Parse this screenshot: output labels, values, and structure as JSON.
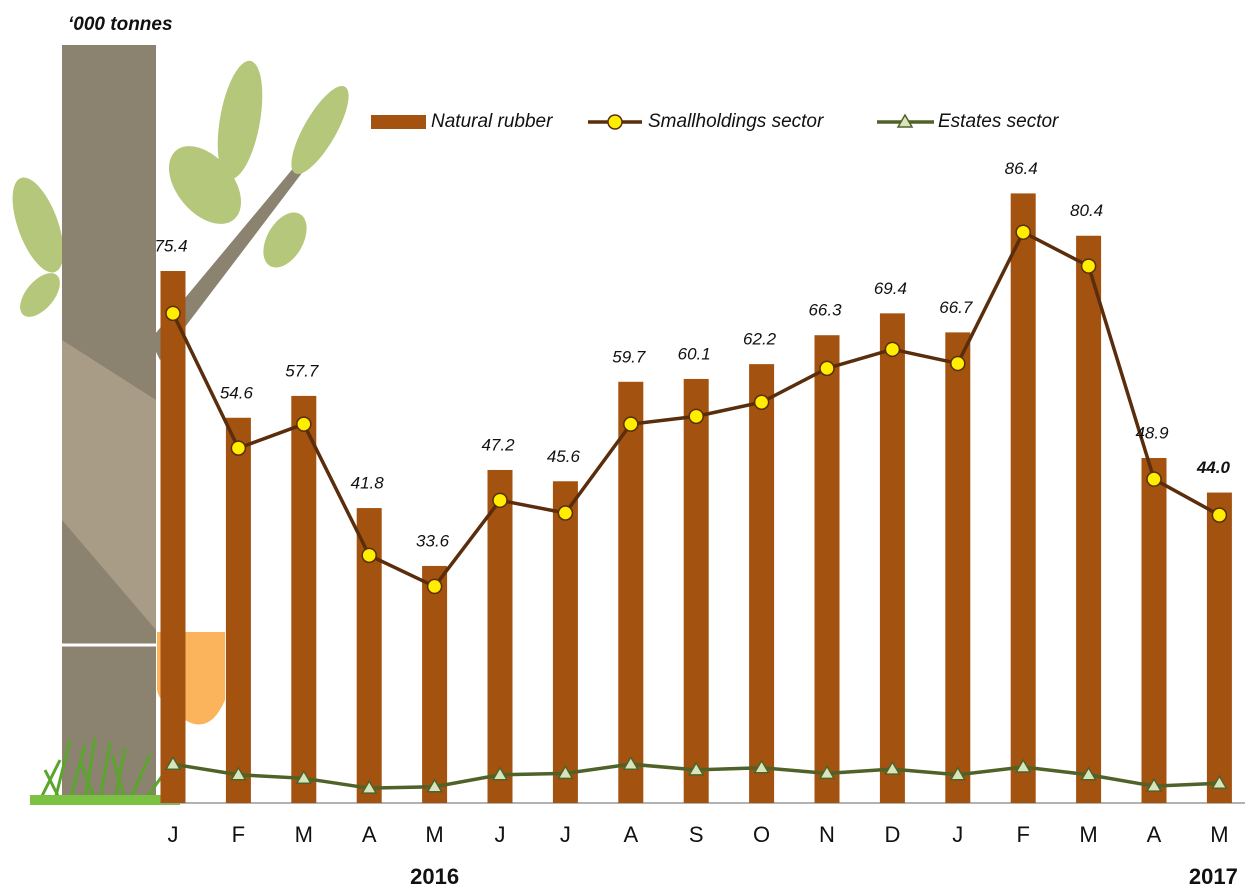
{
  "chart_data": {
    "type": "bar",
    "unit_label": "‘000 tonnes",
    "categories": [
      "J",
      "F",
      "M",
      "A",
      "M",
      "J",
      "J",
      "A",
      "S",
      "O",
      "N",
      "D",
      "J",
      "F",
      "M",
      "A",
      "M"
    ],
    "year_labels": [
      "2016",
      "2017"
    ],
    "series": [
      {
        "name": "Natural rubber",
        "type": "bar",
        "color": "#a3520f",
        "values": [
          75.4,
          54.6,
          57.7,
          41.8,
          33.6,
          47.2,
          45.6,
          59.7,
          60.1,
          62.2,
          66.3,
          69.4,
          66.7,
          86.4,
          80.4,
          48.9,
          44.0
        ],
        "value_labels": [
          "75.4",
          "54.6",
          "57.7",
          "41.8",
          "33.6",
          "47.2",
          "45.6",
          "59.7",
          "60.1",
          "62.2",
          "66.3",
          "69.4",
          "66.7",
          "86.4",
          "80.4",
          "48.9",
          "44.0"
        ]
      },
      {
        "name": "Smallholdings sector",
        "type": "line",
        "color": "#5a2d0c",
        "marker_color": "#ffee00",
        "values": [
          69.4,
          50.3,
          53.7,
          35.1,
          30.7,
          42.9,
          41.1,
          53.7,
          54.8,
          56.8,
          61.6,
          64.3,
          62.3,
          80.9,
          76.1,
          45.9,
          40.8
        ]
      },
      {
        "name": "Estates sector",
        "type": "line",
        "color": "#4f6228",
        "marker_color": "#d8e4bc",
        "values": [
          5.5,
          4.0,
          3.5,
          2.1,
          2.3,
          4.0,
          4.2,
          5.5,
          4.7,
          5.0,
          4.2,
          4.8,
          4.0,
          5.1,
          4.0,
          2.4,
          2.8
        ]
      }
    ],
    "ylim": [
      0,
      90
    ]
  }
}
